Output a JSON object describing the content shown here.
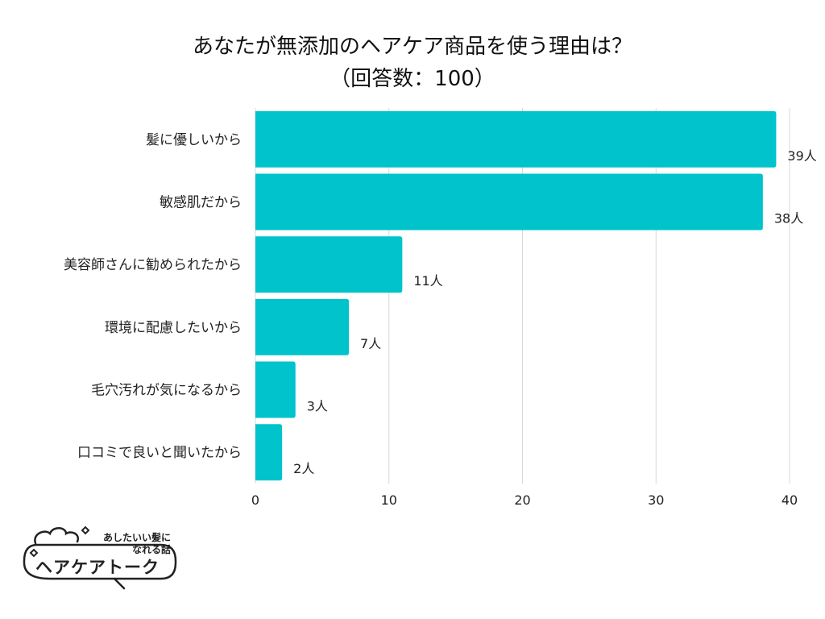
{
  "chart_data": {
    "type": "bar",
    "orientation": "horizontal",
    "title": "あなたが無添加のヘアケア商品を使う理由は？",
    "subtitle": "（回答数：100）",
    "categories": [
      "髪に優しいから",
      "敏感肌だから",
      "美容師さんに勧められたから",
      "環境に配慮したいから",
      "毛穴汚れが気になるから",
      "口コミで良いと聞いたから"
    ],
    "values": [
      39,
      38,
      11,
      7,
      3,
      2
    ],
    "value_unit": "人",
    "xlim": [
      0,
      40
    ],
    "xticks": [
      0,
      10,
      20,
      30,
      40
    ],
    "grid": true,
    "bar_color": "#00C3CB",
    "grid_color": "#D9D9D9"
  },
  "logo": {
    "tagline_line1": "あしたいい髪に",
    "tagline_line2": "なれる話",
    "name": "ヘアケアトーク"
  }
}
